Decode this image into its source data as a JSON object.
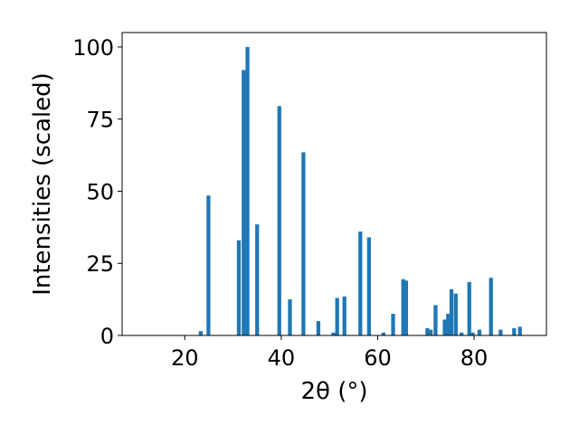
{
  "chart_data": {
    "type": "bar",
    "xlabel": "2θ (°)",
    "ylabel": "Intensities (scaled)",
    "xlim": [
      7,
      95
    ],
    "ylim": [
      0,
      105
    ],
    "xticks": [
      20,
      40,
      60,
      80
    ],
    "yticks": [
      0,
      25,
      50,
      75,
      100
    ],
    "grid": false,
    "color": "#1f77b4",
    "bar_width": 0.8,
    "x": [
      23.3,
      24.9,
      31.2,
      32.2,
      33.0,
      35.0,
      39.6,
      41.8,
      44.6,
      47.7,
      50.8,
      51.6,
      53.1,
      56.4,
      58.2,
      61.2,
      63.2,
      65.3,
      65.9,
      70.3,
      71.0,
      72.0,
      73.9,
      74.6,
      75.3,
      76.2,
      77.4,
      79.0,
      79.7,
      81.1,
      83.5,
      85.5,
      88.3,
      89.5
    ],
    "values": [
      1.5,
      48.5,
      33.0,
      92.0,
      100.0,
      38.5,
      79.5,
      12.5,
      63.5,
      5.0,
      1.0,
      13.0,
      13.5,
      36.0,
      34.0,
      1.0,
      7.5,
      19.5,
      19.0,
      2.5,
      2.0,
      10.5,
      5.5,
      7.5,
      16.0,
      14.5,
      1.0,
      18.5,
      1.0,
      2.0,
      20.0,
      2.0,
      2.5,
      3.0
    ]
  }
}
